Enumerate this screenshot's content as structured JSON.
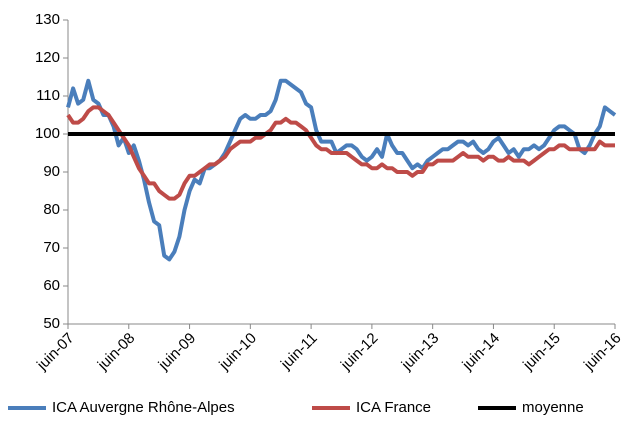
{
  "chart_data": {
    "type": "line",
    "categories": [
      "juin-07",
      null,
      null,
      null,
      null,
      null,
      null,
      null,
      null,
      null,
      null,
      null,
      "juin-08",
      null,
      null,
      null,
      null,
      null,
      null,
      null,
      null,
      null,
      null,
      null,
      "juin-09",
      null,
      null,
      null,
      null,
      null,
      null,
      null,
      null,
      null,
      null,
      null,
      "juin-10",
      null,
      null,
      null,
      null,
      null,
      null,
      null,
      null,
      null,
      null,
      null,
      "juin-11",
      null,
      null,
      null,
      null,
      null,
      null,
      null,
      null,
      null,
      null,
      null,
      "juin-12",
      null,
      null,
      null,
      null,
      null,
      null,
      null,
      null,
      null,
      null,
      null,
      "juin-13",
      null,
      null,
      null,
      null,
      null,
      null,
      null,
      null,
      null,
      null,
      null,
      "juin-14",
      null,
      null,
      null,
      null,
      null,
      null,
      null,
      null,
      null,
      null,
      null,
      "juin-15",
      null,
      null,
      null,
      null,
      null,
      null,
      null,
      null,
      null,
      null,
      null,
      "juin-16"
    ],
    "series": [
      {
        "name": "ICA Auvergne Rhône-Alpes",
        "color": "#4a7ebb",
        "values": [
          107,
          112,
          108,
          109,
          114,
          109,
          108,
          105,
          105,
          102,
          97,
          99,
          95,
          97,
          93,
          88,
          82,
          77,
          76,
          68,
          67,
          69,
          73,
          80,
          85,
          88,
          87,
          91,
          91,
          92,
          93,
          95,
          98,
          101,
          104,
          105,
          104,
          104,
          105,
          105,
          106,
          109,
          114,
          114,
          113,
          112,
          111,
          108,
          107,
          101,
          98,
          98,
          98,
          95,
          96,
          97,
          97,
          96,
          94,
          93,
          94,
          96,
          94,
          100,
          97,
          95,
          95,
          93,
          91,
          92,
          91,
          93,
          94,
          95,
          96,
          96,
          97,
          98,
          98,
          97,
          98,
          96,
          95,
          96,
          98,
          99,
          97,
          95,
          96,
          94,
          96,
          96,
          97,
          96,
          97,
          99,
          101,
          102,
          102,
          101,
          100,
          96,
          95,
          97,
          100,
          102,
          107,
          106,
          105
        ]
      },
      {
        "name": "ICA  France",
        "color": "#be4b48",
        "values": [
          105,
          103,
          103,
          104,
          106,
          107,
          107,
          106,
          105,
          103,
          101,
          99,
          97,
          94,
          91,
          89,
          87,
          87,
          85,
          84,
          83,
          83,
          84,
          87,
          89,
          89,
          90,
          91,
          92,
          92,
          93,
          94,
          96,
          97,
          98,
          98,
          98,
          99,
          99,
          100,
          101,
          103,
          103,
          104,
          103,
          103,
          102,
          101,
          99,
          97,
          96,
          96,
          95,
          95,
          95,
          95,
          94,
          93,
          92,
          92,
          91,
          91,
          92,
          91,
          91,
          90,
          90,
          90,
          89,
          90,
          90,
          92,
          92,
          93,
          93,
          93,
          93,
          94,
          95,
          94,
          94,
          94,
          93,
          94,
          94,
          93,
          93,
          94,
          93,
          93,
          93,
          92,
          93,
          94,
          95,
          96,
          96,
          97,
          97,
          96,
          96,
          96,
          96,
          96,
          96,
          98,
          97,
          97,
          97
        ]
      },
      {
        "name": "moyenne",
        "color": "#000000",
        "values": [
          100,
          100,
          100,
          100,
          100,
          100,
          100,
          100,
          100,
          100,
          100,
          100,
          100,
          100,
          100,
          100,
          100,
          100,
          100,
          100,
          100,
          100,
          100,
          100,
          100,
          100,
          100,
          100,
          100,
          100,
          100,
          100,
          100,
          100,
          100,
          100,
          100,
          100,
          100,
          100,
          100,
          100,
          100,
          100,
          100,
          100,
          100,
          100,
          100,
          100,
          100,
          100,
          100,
          100,
          100,
          100,
          100,
          100,
          100,
          100,
          100,
          100,
          100,
          100,
          100,
          100,
          100,
          100,
          100,
          100,
          100,
          100,
          100,
          100,
          100,
          100,
          100,
          100,
          100,
          100,
          100,
          100,
          100,
          100,
          100,
          100,
          100,
          100,
          100,
          100,
          100,
          100,
          100,
          100,
          100,
          100,
          100,
          100,
          100,
          100,
          100,
          100,
          100,
          100,
          100,
          100,
          100,
          100,
          100
        ]
      }
    ],
    "ylim": [
      50,
      130
    ],
    "yticks": [
      50,
      60,
      70,
      80,
      90,
      100,
      110,
      120,
      130
    ],
    "grid": false,
    "legend": "bottom"
  }
}
